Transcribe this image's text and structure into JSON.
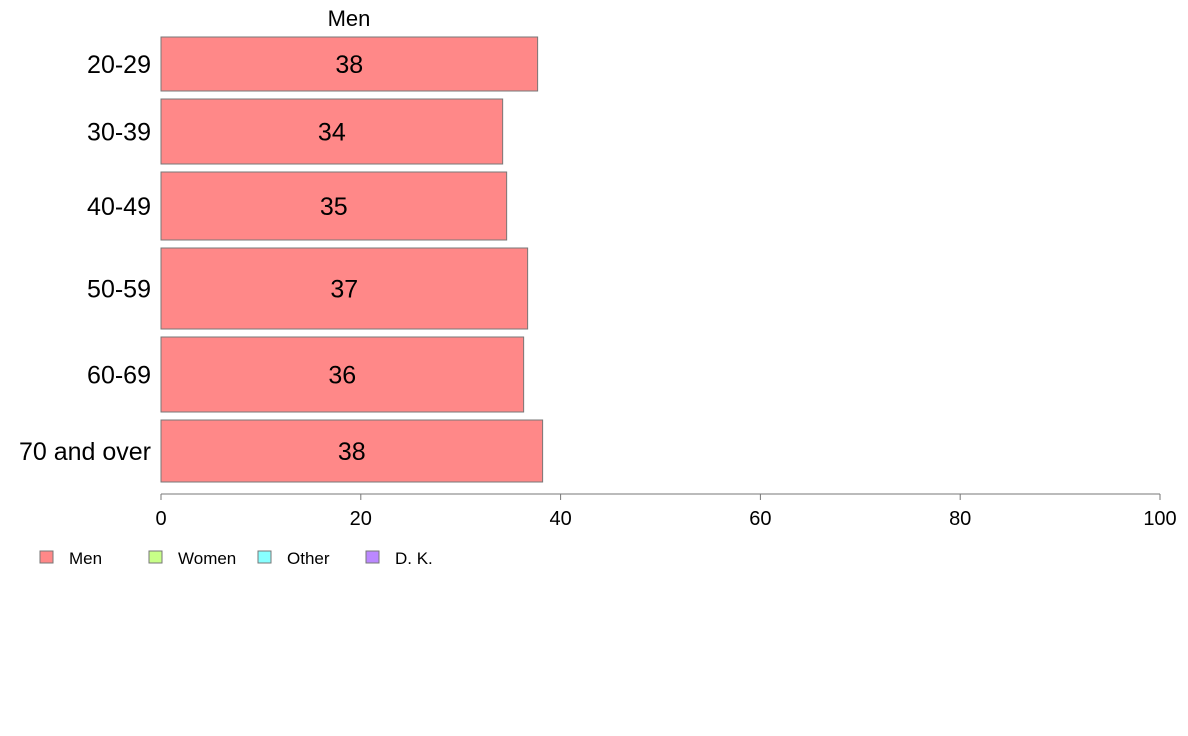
{
  "chart_data": {
    "type": "bar",
    "orientation": "horizontal",
    "panel_title": "Men",
    "categories": [
      "20-29",
      "30-39",
      "40-49",
      "50-59",
      "60-69",
      "70 and over"
    ],
    "series": [
      {
        "name": "Men",
        "values": [
          38,
          34,
          35,
          37,
          36,
          38
        ],
        "display_values": [
          37.7,
          34.2,
          34.6,
          36.7,
          36.3,
          38.2
        ]
      }
    ],
    "xlim": [
      0,
      100
    ],
    "xticks": [
      0,
      20,
      40,
      60,
      80,
      100
    ],
    "grid": false,
    "legend_position": "bottom-left",
    "legend": [
      {
        "label": "Men",
        "color": "#ff8888"
      },
      {
        "label": "Women",
        "color": "#c8ff88"
      },
      {
        "label": "Other",
        "color": "#88ffff"
      },
      {
        "label": "D. K.",
        "color": "#bb88ff"
      }
    ],
    "bar_color": "#ff8888",
    "bar_edge_color": "#777777"
  }
}
